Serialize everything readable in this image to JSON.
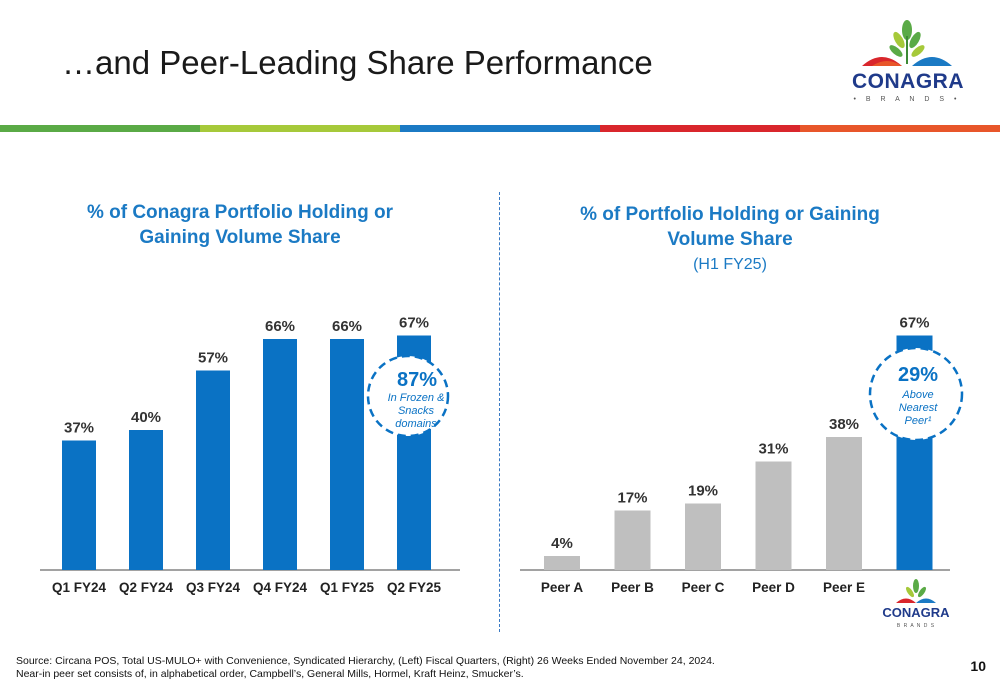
{
  "slide": {
    "title": "…and Peer-Leading Share Performance",
    "page_number": "10",
    "source_line1": "Source: Circana POS, Total US-MULO+ with Convenience, Syndicated Hierarchy, (Left) Fiscal Quarters, (Right) 26 Weeks Ended November 24, 2024.",
    "source_line2": "Near-in peer set consists of, in alphabetical order, Campbell’s, General Mills, Hormel, Kraft Heinz, Smucker’s."
  },
  "logo": {
    "word": "CONAGRA",
    "sub": "• B R A N D S •",
    "small_word": "CONAGRA",
    "small_sub": "B R A N D S"
  },
  "stripe_colors": [
    "#5aaa46",
    "#a6c93a",
    "#1b7ac4",
    "#d9262c",
    "#e8562a"
  ],
  "colors": {
    "accent_blue": "#0a72c4",
    "peer_gray": "#bfbfbf",
    "title_blue": "#1b7ac4"
  },
  "left_panel": {
    "title_line1": "% of Conagra Portfolio Holding or",
    "title_line2": "Gaining Volume Share",
    "callout": {
      "value": "87%",
      "line1": "In Frozen &",
      "line2": "Snacks",
      "line3": "domains"
    }
  },
  "right_panel": {
    "title_line1": "% of Portfolio Holding or Gaining",
    "title_line2": "Volume Share",
    "subtitle": "(H1 FY25)",
    "callout": {
      "value": "29%",
      "line1": "Above",
      "line2": "Nearest",
      "line3": "Peer¹"
    }
  },
  "chart_data": [
    {
      "type": "bar",
      "title": "% of Conagra Portfolio Holding or Gaining Volume Share",
      "categories": [
        "Q1 FY24",
        "Q2 FY24",
        "Q3 FY24",
        "Q4 FY24",
        "Q1 FY25",
        "Q2 FY25"
      ],
      "values": [
        37,
        40,
        57,
        66,
        66,
        67
      ],
      "value_labels": [
        "37%",
        "40%",
        "57%",
        "66%",
        "66%",
        "67%"
      ],
      "bar_colors": [
        "#0a72c4",
        "#0a72c4",
        "#0a72c4",
        "#0a72c4",
        "#0a72c4",
        "#0a72c4"
      ],
      "ylim": [
        0,
        70
      ],
      "grid": false
    },
    {
      "type": "bar",
      "title": "% of Portfolio Holding or Gaining Volume Share",
      "subtitle": "(H1 FY25)",
      "categories": [
        "Peer A",
        "Peer B",
        "Peer C",
        "Peer D",
        "Peer E",
        "Conagra"
      ],
      "category_labels_shown": [
        "Peer A",
        "Peer B",
        "Peer C",
        "Peer D",
        "Peer E"
      ],
      "values": [
        4,
        17,
        19,
        31,
        38,
        67
      ],
      "value_labels": [
        "4%",
        "17%",
        "19%",
        "31%",
        "38%",
        "67%"
      ],
      "bar_colors": [
        "#bfbfbf",
        "#bfbfbf",
        "#bfbfbf",
        "#bfbfbf",
        "#bfbfbf",
        "#0a72c4"
      ],
      "ylim": [
        0,
        70
      ],
      "grid": false
    }
  ]
}
